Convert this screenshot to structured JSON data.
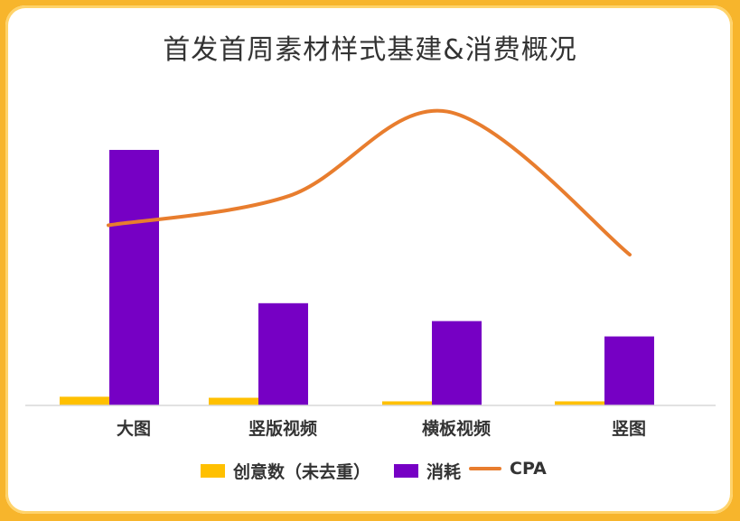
{
  "chart_data": {
    "type": "bar",
    "title": "首发首周素材样式基建&消费概况",
    "categories": [
      "大图",
      "竖版视频",
      "横板视频",
      "竖图"
    ],
    "series": [
      {
        "name": "创意数（未去重）",
        "type": "bar",
        "color": "#ffc000",
        "values": [
          3.4,
          3.0,
          1.6,
          1.6
        ]
      },
      {
        "name": "消耗",
        "type": "bar",
        "color": "#7600c4",
        "values": [
          100,
          40,
          33,
          27
        ]
      },
      {
        "name": "CPA",
        "type": "line",
        "color": "#e87d2e",
        "values": [
          70.5,
          82,
          115,
          59
        ]
      }
    ],
    "ylim": [
      0,
      100
    ],
    "legend_position": "bottom",
    "grid": false
  }
}
